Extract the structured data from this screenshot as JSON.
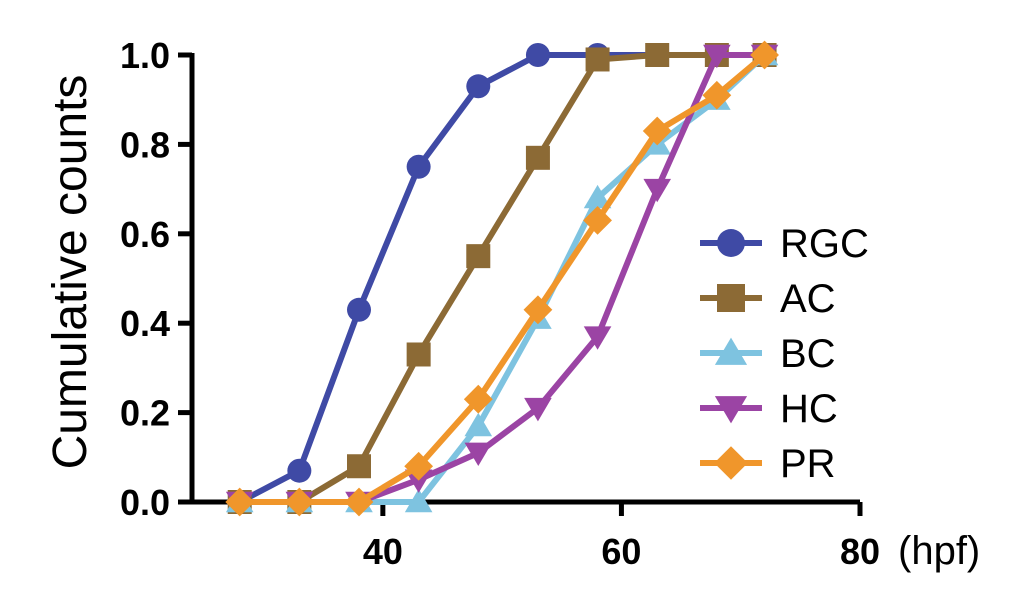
{
  "chart_data": {
    "type": "line",
    "title": "",
    "ylabel": "Cumulative counts",
    "xlabel_unit": "(hpf)",
    "xlim": [
      24,
      80
    ],
    "ylim": [
      0,
      1
    ],
    "x_ticks": [
      40,
      60,
      80
    ],
    "x_tick_labels": [
      "40",
      "60",
      "80"
    ],
    "y_ticks": [
      0,
      0.2,
      0.4,
      0.6,
      0.8,
      1
    ],
    "y_tick_labels": [
      "0.0",
      "0.2",
      "0.4",
      "0.6",
      "0.8",
      "1.0"
    ],
    "grid": false,
    "legend_position": "right",
    "series": [
      {
        "name": "RGC",
        "color": "#3f4aa5",
        "marker": "circle",
        "x": [
          28,
          33,
          38,
          43,
          48,
          53,
          58,
          63,
          68,
          72
        ],
        "y": [
          0,
          0.07,
          0.43,
          0.75,
          0.93,
          1,
          1,
          1,
          1,
          1
        ]
      },
      {
        "name": "AC",
        "color": "#8c6a35",
        "marker": "square",
        "x": [
          28,
          33,
          38,
          43,
          48,
          53,
          58,
          63,
          68,
          72
        ],
        "y": [
          0,
          0,
          0.08,
          0.33,
          0.55,
          0.77,
          0.99,
          1,
          1,
          1
        ]
      },
      {
        "name": "BC",
        "color": "#7ec3e0",
        "marker": "triangle-up",
        "x": [
          28,
          33,
          38,
          43,
          48,
          53,
          58,
          63,
          68,
          72
        ],
        "y": [
          0,
          0,
          0,
          0,
          0.17,
          0.41,
          0.68,
          0.8,
          0.9,
          1
        ]
      },
      {
        "name": "HC",
        "color": "#9b44a4",
        "marker": "triangle-down",
        "x": [
          28,
          33,
          38,
          43,
          48,
          53,
          58,
          63,
          68,
          72
        ],
        "y": [
          0,
          0,
          0,
          0.05,
          0.11,
          0.21,
          0.37,
          0.7,
          1,
          1
        ]
      },
      {
        "name": "PR",
        "color": "#f0962b",
        "marker": "diamond",
        "x": [
          28,
          33,
          38,
          43,
          48,
          53,
          58,
          63,
          68,
          72
        ],
        "y": [
          0,
          0,
          0,
          0.08,
          0.23,
          0.43,
          0.63,
          0.83,
          0.91,
          1
        ]
      }
    ]
  }
}
